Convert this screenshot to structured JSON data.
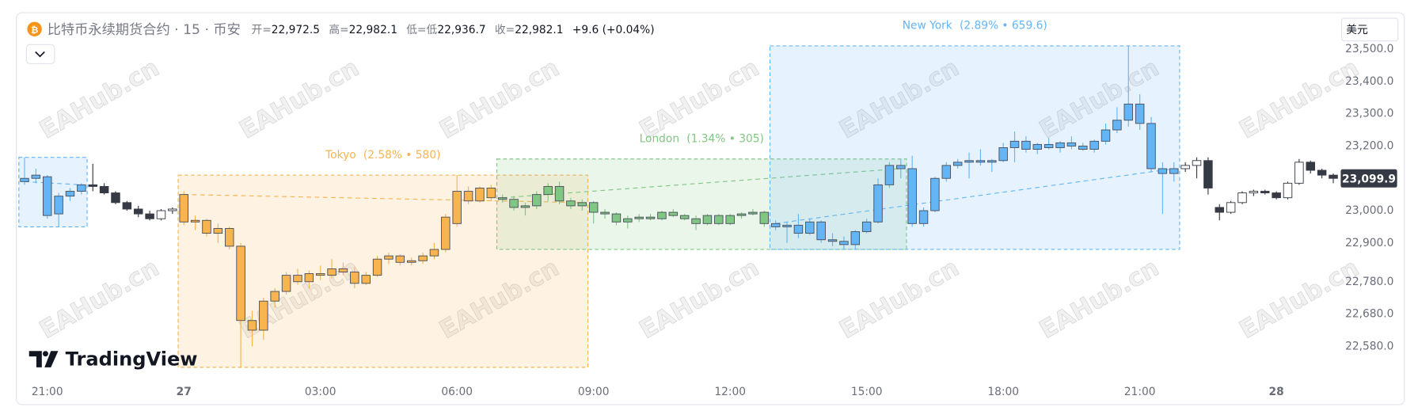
{
  "chart_data": {
    "type": "candlestick",
    "title": "比特币永续期货合约 · 15 · 币安",
    "ohlc_legend": [
      {
        "label": "开=",
        "value": "22,972.5"
      },
      {
        "label": "高=",
        "value": "22,982.1"
      },
      {
        "label": "低=低",
        "value": "22,936.7"
      },
      {
        "label": "收=",
        "value": "22,982.1"
      }
    ],
    "change": "+9.6 (+0.04%)",
    "currency": "美元",
    "brand": "TradingView",
    "watermark": "EAHub.cn",
    "categories": [
      null,
      null,
      "21:00",
      null,
      null,
      null,
      null,
      null,
      null,
      null,
      null,
      null,
      null,
      null,
      "27",
      null,
      null,
      null,
      null,
      null,
      null,
      null,
      null,
      null,
      null,
      null,
      "03:00",
      null,
      null,
      null,
      null,
      null,
      null,
      null,
      null,
      null,
      null,
      null,
      "06:00",
      null,
      null,
      null,
      null,
      null,
      null,
      null,
      null,
      null,
      null,
      null,
      "09:00",
      null,
      null,
      null,
      null,
      null,
      null,
      null,
      null,
      null,
      null,
      null,
      "12:00",
      null,
      null,
      null,
      null,
      null,
      null,
      null,
      null,
      null,
      null,
      null,
      "15:00",
      null,
      null,
      null,
      null,
      null,
      null,
      null,
      null,
      null,
      null,
      null,
      "18:00",
      null,
      null,
      null,
      null,
      null,
      null,
      null,
      null,
      null,
      null,
      null,
      "21:00",
      null,
      null,
      null,
      null,
      null,
      null,
      null,
      null,
      null,
      null,
      null,
      "28",
      null,
      null,
      null,
      null,
      null
    ],
    "ohlc": [
      [
        23090,
        23165,
        23080,
        23100
      ],
      [
        23100,
        23130,
        23085,
        23110
      ],
      [
        23105,
        23110,
        22975,
        22985
      ],
      [
        22990,
        23055,
        22950,
        23045
      ],
      [
        23045,
        23070,
        23030,
        23060
      ],
      [
        23060,
        23085,
        23050,
        23080
      ],
      [
        23080,
        23145,
        23060,
        23075
      ],
      [
        23075,
        23085,
        23050,
        23055
      ],
      [
        23055,
        23060,
        23020,
        23025
      ],
      [
        23025,
        23030,
        23000,
        23005
      ],
      [
        23005,
        23015,
        22980,
        22990
      ],
      [
        22990,
        23000,
        22970,
        22975
      ],
      [
        22975,
        23005,
        22970,
        23000
      ],
      [
        23000,
        23010,
        22990,
        23005
      ],
      [
        23050,
        23060,
        22955,
        22965
      ],
      [
        22965,
        22985,
        22940,
        22970
      ],
      [
        22970,
        22975,
        22920,
        22930
      ],
      [
        22930,
        22960,
        22900,
        22945
      ],
      [
        22945,
        22950,
        22880,
        22890
      ],
      [
        22890,
        22900,
        22515,
        22660
      ],
      [
        22660,
        22690,
        22580,
        22630
      ],
      [
        22630,
        22730,
        22600,
        22720
      ],
      [
        22720,
        22760,
        22700,
        22750
      ],
      [
        22750,
        22810,
        22740,
        22800
      ],
      [
        22800,
        22820,
        22770,
        22780
      ],
      [
        22780,
        22815,
        22760,
        22805
      ],
      [
        22805,
        22830,
        22785,
        22800
      ],
      [
        22800,
        22850,
        22790,
        22820
      ],
      [
        22820,
        22840,
        22800,
        22810
      ],
      [
        22810,
        22825,
        22760,
        22775
      ],
      [
        22775,
        22810,
        22770,
        22800
      ],
      [
        22800,
        22860,
        22795,
        22850
      ],
      [
        22850,
        22870,
        22835,
        22860
      ],
      [
        22860,
        22865,
        22830,
        22840
      ],
      [
        22840,
        22855,
        22830,
        22845
      ],
      [
        22845,
        22870,
        22835,
        22860
      ],
      [
        22860,
        22900,
        22850,
        22880
      ],
      [
        22880,
        22990,
        22870,
        22980
      ],
      [
        22960,
        23110,
        22950,
        23060
      ],
      [
        23060,
        23075,
        23020,
        23030
      ],
      [
        23030,
        23075,
        23025,
        23070
      ],
      [
        23070,
        23080,
        23030,
        23040
      ],
      [
        23040,
        23050,
        23025,
        23035
      ],
      [
        23035,
        23045,
        23000,
        23010
      ],
      [
        23010,
        23025,
        22985,
        23015
      ],
      [
        23015,
        23060,
        23005,
        23050
      ],
      [
        23050,
        23085,
        23030,
        23075
      ],
      [
        23075,
        23090,
        23020,
        23030
      ],
      [
        23030,
        23040,
        23005,
        23015
      ],
      [
        23015,
        23035,
        23000,
        23025
      ],
      [
        23025,
        23030,
        22960,
        22995
      ],
      [
        22995,
        23005,
        22975,
        22990
      ],
      [
        22990,
        22995,
        22955,
        22965
      ],
      [
        22965,
        22985,
        22945,
        22975
      ],
      [
        22975,
        22990,
        22965,
        22980
      ],
      [
        22980,
        22990,
        22970,
        22975
      ],
      [
        22975,
        23000,
        22970,
        22995
      ],
      [
        22995,
        23005,
        22980,
        22985
      ],
      [
        22985,
        22990,
        22970,
        22975
      ],
      [
        22975,
        22985,
        22940,
        22960
      ],
      [
        22960,
        22990,
        22955,
        22985
      ],
      [
        22985,
        22990,
        22955,
        22960
      ],
      [
        22960,
        22990,
        22955,
        22985
      ],
      [
        22985,
        22995,
        22975,
        22990
      ],
      [
        22990,
        23005,
        22985,
        22995
      ],
      [
        22995,
        23000,
        22950,
        22960
      ],
      [
        22960,
        22970,
        22940,
        22950
      ],
      [
        22950,
        22965,
        22900,
        22955
      ],
      [
        22955,
        22990,
        22915,
        22930
      ],
      [
        22930,
        22975,
        22925,
        22965
      ],
      [
        22965,
        22970,
        22900,
        22910
      ],
      [
        22910,
        22930,
        22890,
        22905
      ],
      [
        22905,
        22920,
        22880,
        22895
      ],
      [
        22895,
        22940,
        22880,
        22935
      ],
      [
        22935,
        22975,
        22930,
        22965
      ],
      [
        22965,
        23100,
        22960,
        23080
      ],
      [
        23080,
        23150,
        23070,
        23140
      ],
      [
        23140,
        23160,
        23100,
        23130
      ],
      [
        23130,
        23170,
        22950,
        22960
      ],
      [
        22960,
        23010,
        22950,
        23000
      ],
      [
        23000,
        23105,
        22995,
        23100
      ],
      [
        23100,
        23150,
        23090,
        23140
      ],
      [
        23140,
        23160,
        23130,
        23150
      ],
      [
        23150,
        23180,
        23100,
        23155
      ],
      [
        23155,
        23190,
        23140,
        23150
      ],
      [
        23150,
        23160,
        23120,
        23155
      ],
      [
        23155,
        23210,
        23150,
        23195
      ],
      [
        23195,
        23245,
        23150,
        23215
      ],
      [
        23215,
        23230,
        23180,
        23190
      ],
      [
        23190,
        23210,
        23175,
        23205
      ],
      [
        23205,
        23225,
        23190,
        23195
      ],
      [
        23195,
        23215,
        23180,
        23210
      ],
      [
        23210,
        23230,
        23190,
        23200
      ],
      [
        23200,
        23210,
        23185,
        23190
      ],
      [
        23190,
        23220,
        23180,
        23215
      ],
      [
        23215,
        23270,
        23205,
        23250
      ],
      [
        23250,
        23320,
        23240,
        23280
      ],
      [
        23280,
        23510,
        23260,
        23330
      ],
      [
        23330,
        23360,
        23250,
        23270
      ],
      [
        23270,
        23290,
        23120,
        23130
      ],
      [
        23130,
        23150,
        22990,
        23115
      ],
      [
        23115,
        23150,
        23090,
        23130
      ],
      [
        23130,
        23150,
        23120,
        23140
      ],
      [
        23140,
        23165,
        23100,
        23155
      ],
      [
        23155,
        23165,
        23050,
        23070
      ],
      [
        23010,
        23020,
        22970,
        22995
      ],
      [
        22995,
        23030,
        22990,
        23025
      ],
      [
        23025,
        23060,
        23020,
        23055
      ],
      [
        23055,
        23065,
        23045,
        23060
      ],
      [
        23060,
        23065,
        23050,
        23055
      ],
      [
        23055,
        23060,
        23035,
        23040
      ],
      [
        23040,
        23090,
        23035,
        23085
      ],
      [
        23085,
        23160,
        23080,
        23150
      ],
      [
        23150,
        23155,
        23115,
        23125
      ],
      [
        23125,
        23130,
        23100,
        23110
      ],
      [
        23110,
        23115,
        23085,
        23100
      ]
    ],
    "up_color": "#ffffff",
    "down_color": "#363a45",
    "sessions": [
      {
        "color": "#64b5f6",
        "range": [
          0,
          5
        ]
      },
      {
        "name": "Tokyo",
        "stats": "(2.58% • 580)",
        "color": "#f7b44f",
        "range": [
          14,
          49
        ]
      },
      {
        "name": "London",
        "stats": "(1.34% • 305)",
        "color": "#81c784",
        "range": [
          42,
          77
        ]
      },
      {
        "name": "New York",
        "stats": "(2.89% • 659.6)",
        "color": "#64b5f6",
        "range": [
          66,
          101
        ]
      }
    ],
    "ylim": [
      22470,
      23607
    ],
    "yticks": [
      {
        "value": 23500,
        "label": "23,500.0"
      },
      {
        "value": 23400,
        "label": "23,400.0"
      },
      {
        "value": 23300,
        "label": "23,300.0"
      },
      {
        "value": 23200,
        "label": "23,200.0"
      },
      {
        "value": 23000,
        "label": "23,000.0"
      },
      {
        "value": 22900,
        "label": "22,900.0"
      },
      {
        "value": 22780,
        "label": "22,780.0"
      },
      {
        "value": 22680,
        "label": "22,680.0"
      },
      {
        "value": 22580,
        "label": "22,580.0"
      }
    ],
    "last_price": {
      "value": 23099.9,
      "label": "23,099.9"
    },
    "grid": false
  }
}
